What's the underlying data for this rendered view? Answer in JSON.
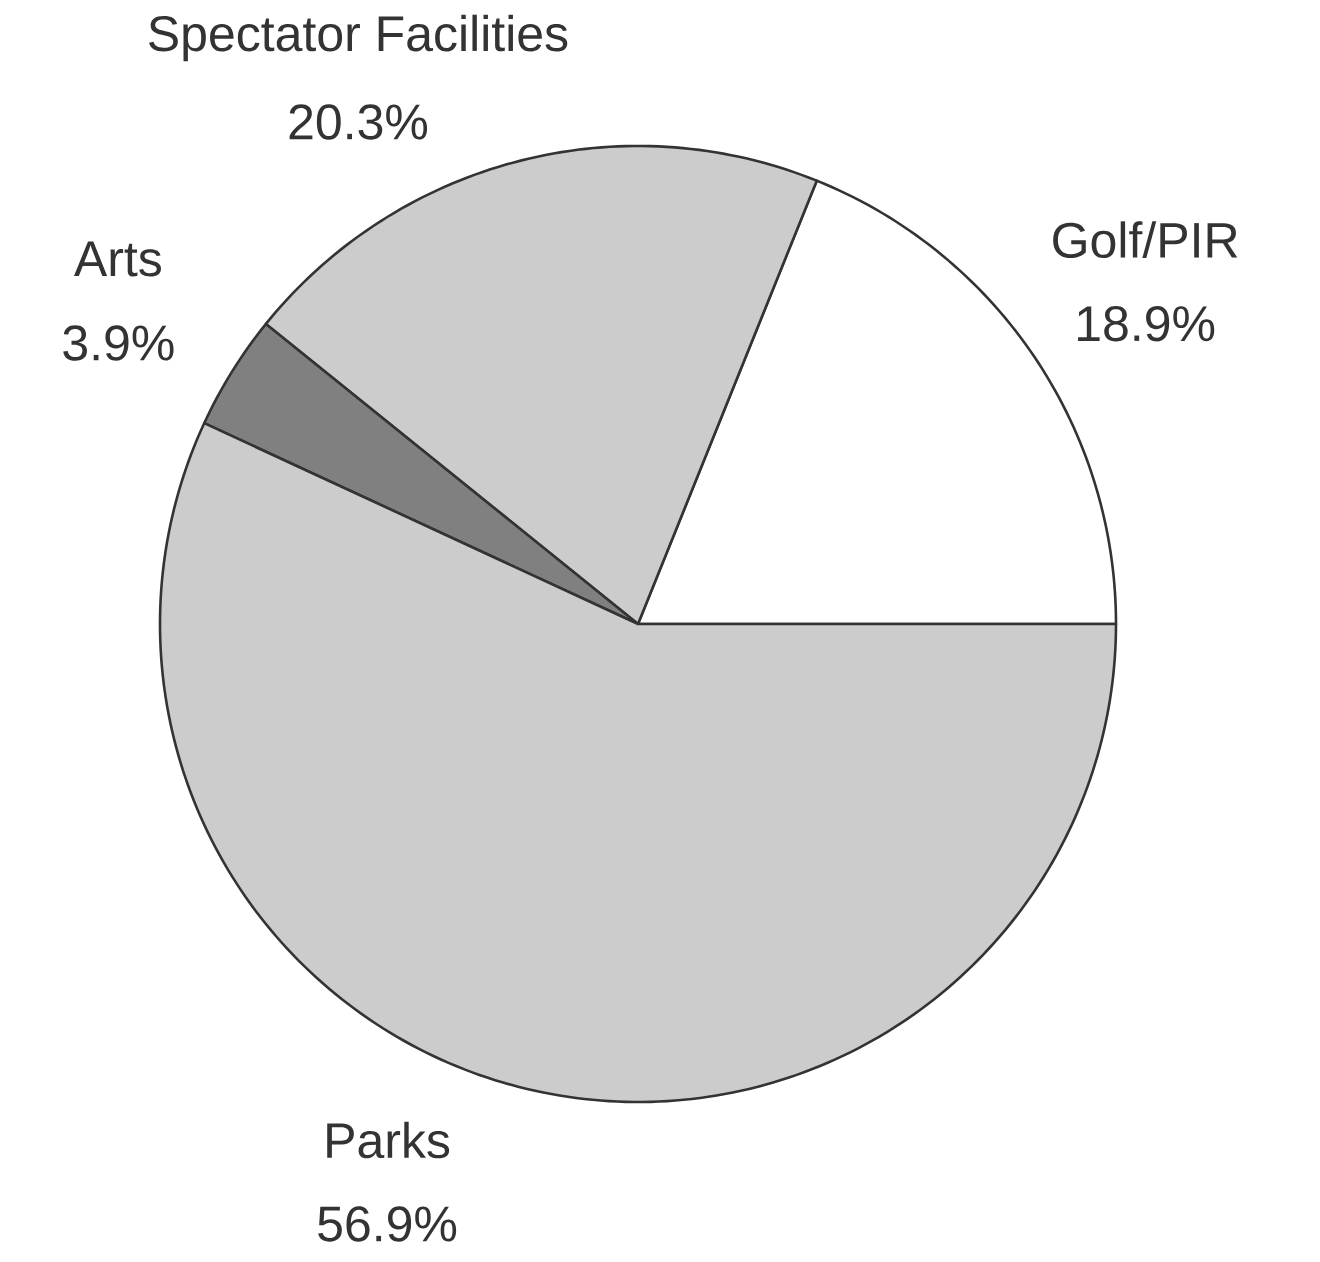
{
  "chart_data": {
    "type": "pie",
    "categories": [
      "Golf/PIR",
      "Spectator Facilities",
      "Arts",
      "Parks"
    ],
    "values": [
      18.9,
      20.3,
      3.9,
      56.9
    ],
    "colors": [
      "#ffffff",
      "#cccccc",
      "#808080",
      "#cccccc"
    ],
    "value_labels": [
      "18.9%",
      "20.3%",
      "3.9%",
      "56.9%"
    ]
  }
}
